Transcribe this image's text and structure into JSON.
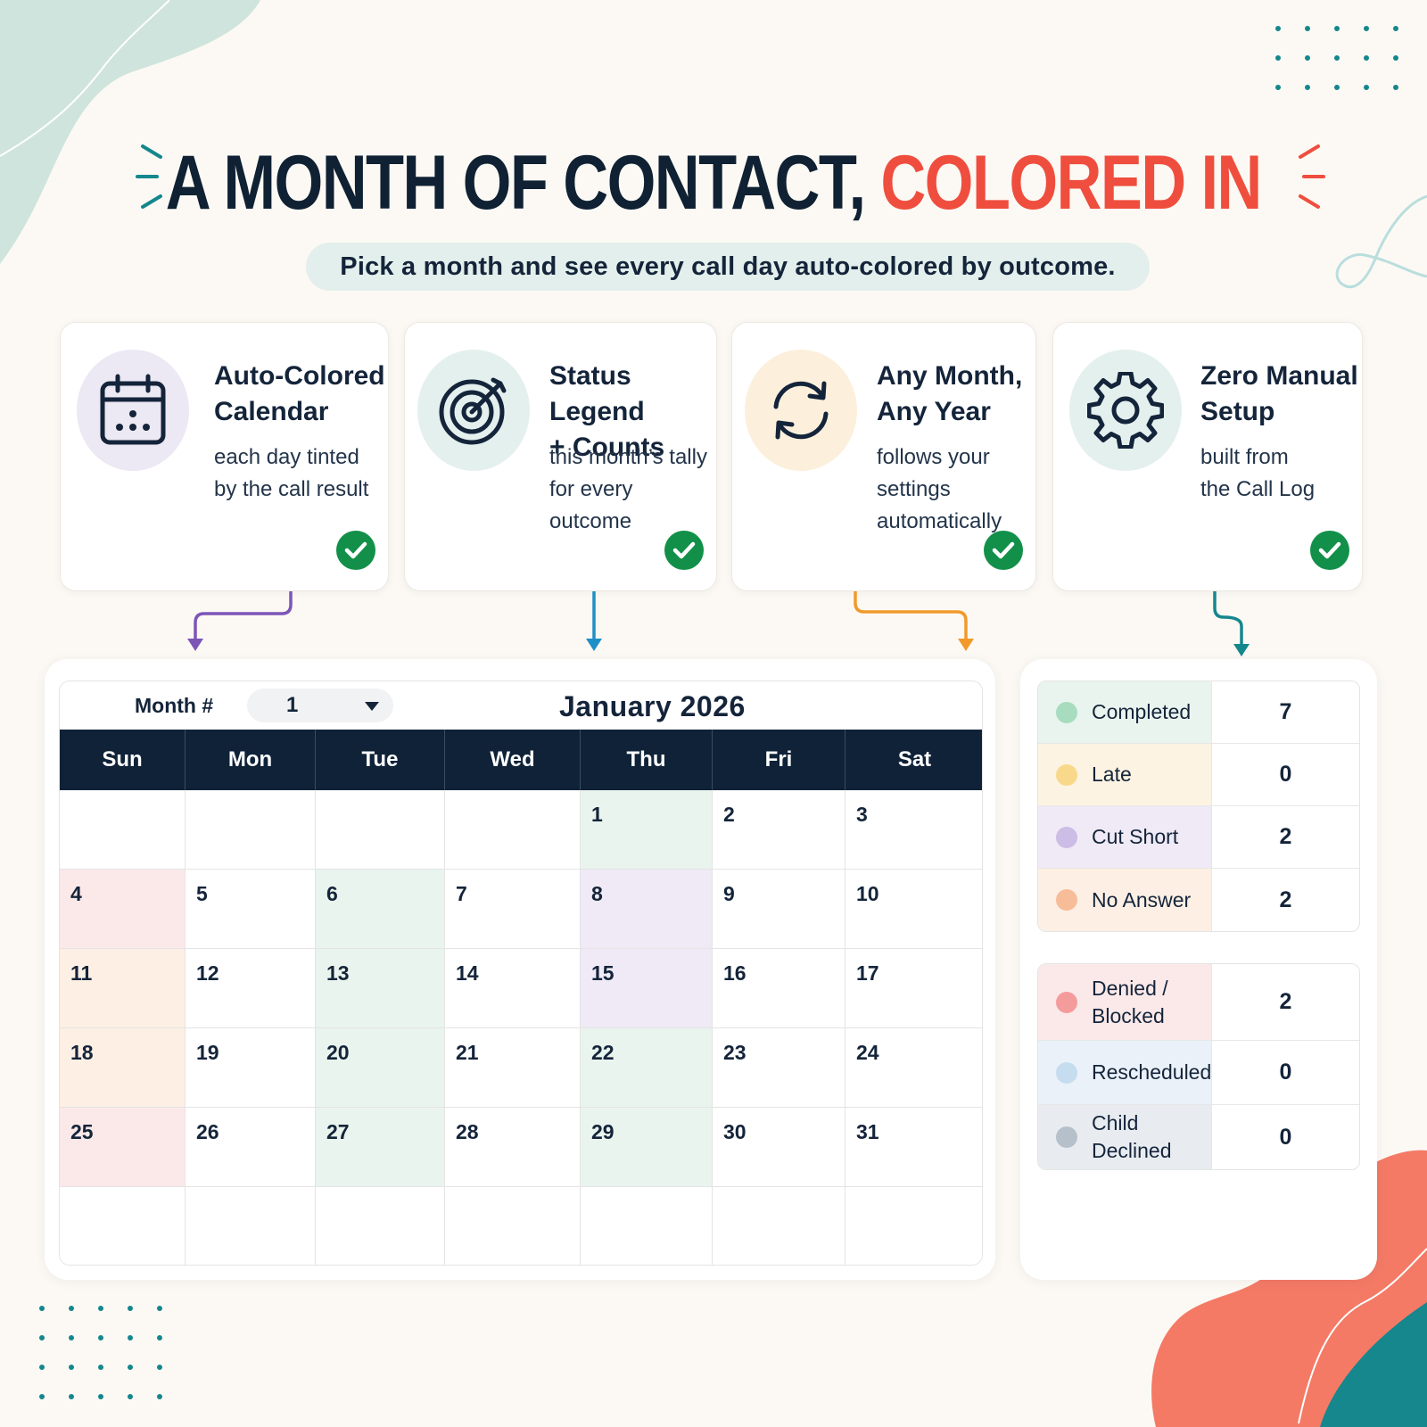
{
  "header": {
    "title_main": "A MONTH OF CONTACT,",
    "title_accent": "COLORED IN",
    "subtitle": "Pick a month and see every call day auto-colored by outcome."
  },
  "colors": {
    "accent": "#ef4e3e",
    "navy": "#0f2238",
    "teal": "#14878d",
    "check_green": "#12904a"
  },
  "features": [
    {
      "icon": "calendar-icon",
      "title_1": "Auto-Colored",
      "title_2": "Calendar",
      "text_1": "each day tinted",
      "text_2": "by the call result",
      "text_3": ""
    },
    {
      "icon": "target-icon",
      "title_1": "Status Legend",
      "title_2": "+ Counts",
      "text_1": "this month’s tally",
      "text_2": "for every outcome",
      "text_3": ""
    },
    {
      "icon": "refresh-icon",
      "title_1": "Any Month,",
      "title_2": "Any Year",
      "text_1": "follows your",
      "text_2": "settings",
      "text_3": "automatically"
    },
    {
      "icon": "gear-icon",
      "title_1": "Zero Manual",
      "title_2": "Setup",
      "text_1": "built from",
      "text_2": "the Call Log",
      "text_3": ""
    }
  ],
  "calendar": {
    "month_label": "Month #",
    "month_value": "1",
    "title": "January 2026",
    "days_of_week": [
      "Sun",
      "Mon",
      "Tue",
      "Wed",
      "Thu",
      "Fri",
      "Sat"
    ],
    "cells": [
      {
        "d": "",
        "s": ""
      },
      {
        "d": "",
        "s": ""
      },
      {
        "d": "",
        "s": ""
      },
      {
        "d": "",
        "s": ""
      },
      {
        "d": "1",
        "s": "completed"
      },
      {
        "d": "2",
        "s": ""
      },
      {
        "d": "3",
        "s": ""
      },
      {
        "d": "4",
        "s": "denied"
      },
      {
        "d": "5",
        "s": ""
      },
      {
        "d": "6",
        "s": "completed"
      },
      {
        "d": "7",
        "s": ""
      },
      {
        "d": "8",
        "s": "cut_short"
      },
      {
        "d": "9",
        "s": ""
      },
      {
        "d": "10",
        "s": ""
      },
      {
        "d": "11",
        "s": "no_answer"
      },
      {
        "d": "12",
        "s": ""
      },
      {
        "d": "13",
        "s": "completed"
      },
      {
        "d": "14",
        "s": ""
      },
      {
        "d": "15",
        "s": "cut_short"
      },
      {
        "d": "16",
        "s": ""
      },
      {
        "d": "17",
        "s": ""
      },
      {
        "d": "18",
        "s": "no_answer"
      },
      {
        "d": "19",
        "s": ""
      },
      {
        "d": "20",
        "s": "completed"
      },
      {
        "d": "21",
        "s": ""
      },
      {
        "d": "22",
        "s": "completed"
      },
      {
        "d": "23",
        "s": ""
      },
      {
        "d": "24",
        "s": ""
      },
      {
        "d": "25",
        "s": "denied"
      },
      {
        "d": "26",
        "s": ""
      },
      {
        "d": "27",
        "s": "completed"
      },
      {
        "d": "28",
        "s": ""
      },
      {
        "d": "29",
        "s": "completed"
      },
      {
        "d": "30",
        "s": ""
      },
      {
        "d": "31",
        "s": ""
      },
      {
        "d": "",
        "s": ""
      },
      {
        "d": "",
        "s": ""
      },
      {
        "d": "",
        "s": ""
      },
      {
        "d": "",
        "s": ""
      },
      {
        "d": "",
        "s": ""
      },
      {
        "d": "",
        "s": ""
      },
      {
        "d": "",
        "s": ""
      }
    ]
  },
  "status_tints": {
    "completed": "#eaf4ee",
    "late": "#fdf3e2",
    "cut_short": "#efeaf6",
    "no_answer": "#fdefe4",
    "denied": "#fbe9e9",
    "rescheduled": "#eaf1f8",
    "child_declined": "#e8ecf0"
  },
  "legend": {
    "group1": [
      {
        "key": "completed",
        "label": "Completed",
        "count": "7",
        "dot": "#a7dcbf"
      },
      {
        "key": "late",
        "label": "Late",
        "count": "0",
        "dot": "#f8d98c"
      },
      {
        "key": "cut_short",
        "label": "Cut Short",
        "count": "2",
        "dot": "#cbbde6"
      },
      {
        "key": "no_answer",
        "label": "No Answer",
        "count": "2",
        "dot": "#f6bd98"
      }
    ],
    "group2": [
      {
        "key": "denied",
        "label": "Denied / Blocked",
        "count": "2",
        "dot": "#f49c9c"
      },
      {
        "key": "rescheduled",
        "label": "Rescheduled",
        "count": "0",
        "dot": "#c6dcef"
      },
      {
        "key": "child_declined",
        "label": "Child Declined",
        "count": "0",
        "dot": "#b5c0ca"
      }
    ]
  }
}
